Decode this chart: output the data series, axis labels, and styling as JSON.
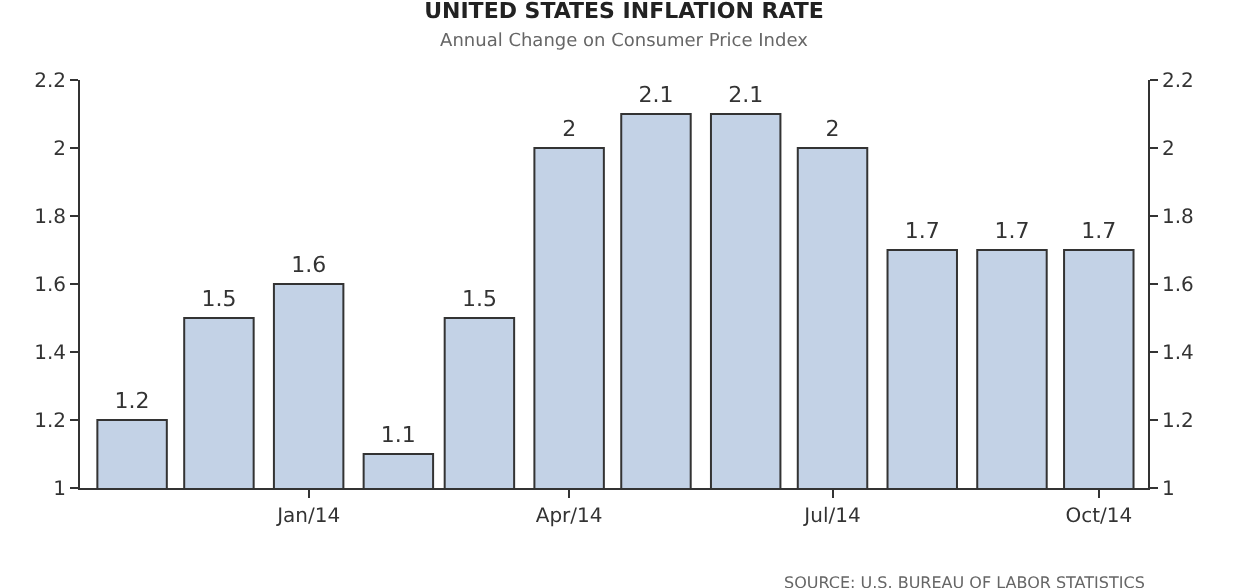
{
  "chart_data": {
    "type": "bar",
    "title": "UNITED STATES INFLATION RATE",
    "subtitle": "Annual Change on Consumer Price Index",
    "x": [
      "2013-11",
      "2013-12",
      "2014-01",
      "2014-02",
      "2014-03",
      "2014-04",
      "2014-05",
      "2014-06",
      "2014-07",
      "2014-08",
      "2014-09",
      "2014-10"
    ],
    "values": [
      1.2,
      1.5,
      1.6,
      1.1,
      1.5,
      2,
      2.1,
      2.1,
      2,
      1.7,
      1.7,
      1.7
    ],
    "color": "#c3d2e6",
    "data_labels": true,
    "xlim": [
      "2013-10-14",
      "2014-10-18"
    ],
    "xticks": [
      {
        "value": "2014-01",
        "label": "Jan/14"
      },
      {
        "value": "2014-04",
        "label": "Apr/14"
      },
      {
        "value": "2014-07",
        "label": "Jul/14"
      },
      {
        "value": "2014-10",
        "label": "Oct/14"
      }
    ],
    "ylim": [
      1,
      2.2
    ],
    "yticks": [
      1,
      1.2,
      1.4,
      1.6,
      1.8,
      2,
      2.2
    ],
    "y2lim": [
      1,
      2.2
    ],
    "y2ticks": [
      1,
      1.2,
      1.4,
      1.6,
      1.8,
      2,
      2.2
    ],
    "grid": false,
    "annotations": [
      "SOURCE: U.S. BUREAU OF LABOR STATISTICS"
    ]
  }
}
